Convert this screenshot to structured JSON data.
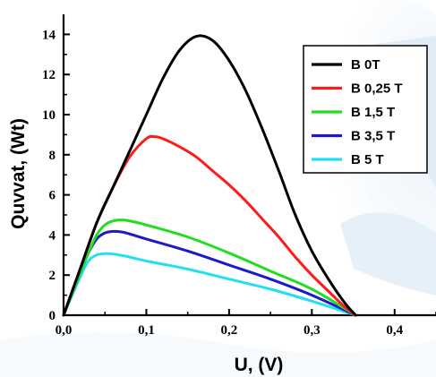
{
  "chart_data": {
    "type": "line",
    "title": "",
    "xlabel": "U, (V)",
    "ylabel": "Quvvat, (Wt)",
    "xlim": [
      0,
      0.45
    ],
    "ylim": [
      0,
      15
    ],
    "x_ticks": [
      0,
      0.1,
      0.2,
      0.3,
      0.4
    ],
    "x_tick_labels": [
      "0,0",
      "0,1",
      "0,2",
      "0,3",
      "0,4"
    ],
    "y_ticks": [
      0,
      2,
      4,
      6,
      8,
      10,
      12,
      14
    ],
    "y_tick_labels": [
      "0",
      "2",
      "4",
      "6",
      "8",
      "10",
      "12",
      "14"
    ],
    "grid": false,
    "legend_position": "top-right",
    "series": [
      {
        "name": "B 0T",
        "color": "#000000",
        "x": [
          0,
          0.02,
          0.04,
          0.06,
          0.08,
          0.1,
          0.12,
          0.14,
          0.16,
          0.18,
          0.2,
          0.22,
          0.24,
          0.26,
          0.28,
          0.3,
          0.32,
          0.34,
          0.353
        ],
        "y": [
          0,
          2.3,
          4.6,
          6.4,
          8.2,
          10.0,
          11.8,
          13.2,
          13.9,
          13.7,
          12.7,
          11.2,
          9.3,
          7.2,
          5.0,
          3.2,
          1.8,
          0.6,
          0
        ]
      },
      {
        "name": "B 0,25 T",
        "color": "#ff1a1a",
        "x": [
          0,
          0.02,
          0.04,
          0.06,
          0.08,
          0.1,
          0.11,
          0.12,
          0.14,
          0.16,
          0.18,
          0.2,
          0.22,
          0.24,
          0.26,
          0.28,
          0.3,
          0.32,
          0.34,
          0.353
        ],
        "y": [
          0,
          2.3,
          4.6,
          6.4,
          7.9,
          8.8,
          8.9,
          8.8,
          8.4,
          7.9,
          7.2,
          6.5,
          5.7,
          4.8,
          3.9,
          2.9,
          2.0,
          1.2,
          0.4,
          0
        ]
      },
      {
        "name": "B 1,5 T",
        "color": "#22dd22",
        "x": [
          0,
          0.02,
          0.03,
          0.04,
          0.05,
          0.06,
          0.07,
          0.08,
          0.1,
          0.15,
          0.2,
          0.25,
          0.3,
          0.353
        ],
        "y": [
          0,
          2.1,
          3.1,
          4.0,
          4.5,
          4.7,
          4.75,
          4.7,
          4.5,
          3.9,
          3.1,
          2.2,
          1.3,
          0
        ]
      },
      {
        "name": "B 3,5 T",
        "color": "#1a1acc",
        "x": [
          0,
          0.02,
          0.03,
          0.04,
          0.05,
          0.06,
          0.07,
          0.08,
          0.1,
          0.15,
          0.2,
          0.25,
          0.3,
          0.353
        ],
        "y": [
          0,
          2.1,
          3.1,
          3.8,
          4.1,
          4.18,
          4.15,
          4.05,
          3.8,
          3.2,
          2.5,
          1.8,
          1.0,
          0
        ]
      },
      {
        "name": "B 5 T",
        "color": "#22e0f0",
        "x": [
          0,
          0.02,
          0.03,
          0.04,
          0.05,
          0.06,
          0.07,
          0.08,
          0.1,
          0.15,
          0.2,
          0.25,
          0.3,
          0.353
        ],
        "y": [
          0,
          1.9,
          2.7,
          3.0,
          3.07,
          3.05,
          2.98,
          2.9,
          2.7,
          2.3,
          1.8,
          1.3,
          0.7,
          0
        ]
      }
    ]
  }
}
